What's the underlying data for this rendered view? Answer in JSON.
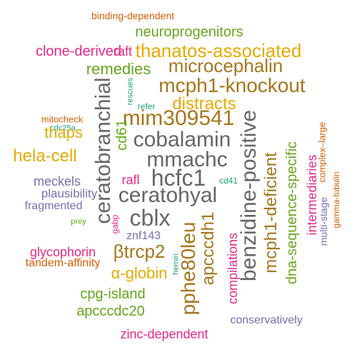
{
  "palette": {
    "orange": "#D95F02",
    "dark_orange": "#E6AB02",
    "green": "#66A61E",
    "magenta": "#E7298A",
    "brown": "#A6761D",
    "gray": "#666666",
    "purple": "#7570B3",
    "teal": "#1B9E77"
  },
  "words": [
    {
      "key": "binding-dependent",
      "text": "binding-dependent"
    },
    {
      "key": "neuroprogenitors",
      "text": "neuroprogenitors"
    },
    {
      "key": "clone-derived",
      "text": "clone-derived"
    },
    {
      "key": "raft",
      "text": "raft"
    },
    {
      "key": "thanatos-associated",
      "text": "thanatos-associated"
    },
    {
      "key": "remedies",
      "text": "remedies"
    },
    {
      "key": "microcephalin",
      "text": "microcephalin"
    },
    {
      "key": "mcph1-knockout",
      "text": "mcph1-knockout"
    },
    {
      "key": "rescues",
      "text": "rescues"
    },
    {
      "key": "refer",
      "text": "refer"
    },
    {
      "key": "distracts",
      "text": "distracts"
    },
    {
      "key": "ceratobranchial",
      "text": "ceratobranchial"
    },
    {
      "key": "mim309541",
      "text": "mim309541"
    },
    {
      "key": "mitocheck",
      "text": "mitocheck"
    },
    {
      "key": "cdc25a",
      "text": "cdc25a"
    },
    {
      "key": "thaps",
      "text": "thaps"
    },
    {
      "key": "cd61",
      "text": "cd61"
    },
    {
      "key": "cobalamin",
      "text": "cobalamin"
    },
    {
      "key": "benzidine-positive",
      "text": "benzidine-positive"
    },
    {
      "key": "complex-large",
      "text": "complex–large"
    },
    {
      "key": "hela-cell",
      "text": "hela-cell"
    },
    {
      "key": "mmachc",
      "text": "mmachc"
    },
    {
      "key": "dna-sequence-specific",
      "text": "dna-sequence-specific"
    },
    {
      "key": "meckels",
      "text": "meckels"
    },
    {
      "key": "rafl",
      "text": "rafl"
    },
    {
      "key": "hcfc1",
      "text": "hcfc1"
    },
    {
      "key": "cd41",
      "text": "cd41"
    },
    {
      "key": "mcph1-deficient",
      "text": "mcph1-deficient"
    },
    {
      "key": "intermediaries",
      "text": "intermediaries"
    },
    {
      "key": "gamma-tubulin",
      "text": "gamma-tubulin"
    },
    {
      "key": "plausibility",
      "text": "plausibility"
    },
    {
      "key": "ceratohyal",
      "text": "ceratohyal"
    },
    {
      "key": "fragmented",
      "text": "fragmented"
    },
    {
      "key": "multi-stage",
      "text": "multi-stage"
    },
    {
      "key": "cblx",
      "text": "cblx"
    },
    {
      "key": "prey",
      "text": "prey"
    },
    {
      "key": "gabp",
      "text": "gabp"
    },
    {
      "key": "znf143",
      "text": "znf143"
    },
    {
      "key": "apcccdh1",
      "text": "apcccdh1"
    },
    {
      "key": "glycophorin",
      "text": "glycophorin"
    },
    {
      "key": "btrcp2",
      "text": "βtrcp2"
    },
    {
      "key": "hemin",
      "text": "hemin"
    },
    {
      "key": "tandem-affinity",
      "text": "tandem-affinity"
    },
    {
      "key": "compilations",
      "text": "compilations"
    },
    {
      "key": "a-globin",
      "text": "α-globin"
    },
    {
      "key": "pphe80leu",
      "text": "pphe80leu"
    },
    {
      "key": "cpg-island",
      "text": "cpg-island"
    },
    {
      "key": "apcccdc20",
      "text": "apcccdc20"
    },
    {
      "key": "conservatively",
      "text": "conservatively"
    },
    {
      "key": "zinc-dependent",
      "text": "zinc-dependent"
    }
  ]
}
